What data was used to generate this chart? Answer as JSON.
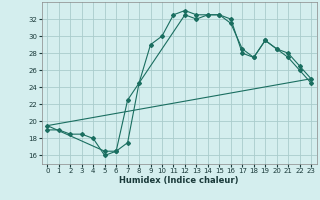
{
  "background_color": "#d4eeee",
  "grid_color": "#aacccc",
  "line_color": "#1a6e60",
  "xlabel": "Humidex (Indice chaleur)",
  "xlim": [
    -0.5,
    23.5
  ],
  "ylim": [
    15,
    34
  ],
  "xticks": [
    0,
    1,
    2,
    3,
    4,
    5,
    6,
    7,
    8,
    9,
    10,
    11,
    12,
    13,
    14,
    15,
    16,
    17,
    18,
    19,
    20,
    21,
    22,
    23
  ],
  "yticks": [
    16,
    18,
    20,
    22,
    24,
    26,
    28,
    30,
    32
  ],
  "line1_x": [
    0,
    1,
    2,
    3,
    4,
    5,
    6,
    7,
    8,
    9,
    10,
    11,
    12,
    13,
    14,
    15,
    16,
    17,
    18,
    19,
    20,
    21,
    22,
    23
  ],
  "line1_y": [
    19.0,
    19.0,
    18.5,
    18.5,
    18.0,
    16.0,
    16.5,
    17.5,
    24.5,
    29.0,
    30.0,
    32.5,
    33.0,
    32.5,
    32.5,
    32.5,
    32.0,
    28.0,
    27.5,
    29.5,
    28.5,
    27.5,
    26.0,
    24.5
  ],
  "line2_x": [
    0,
    5,
    6,
    7,
    12,
    13,
    14,
    15,
    16,
    17,
    18,
    19,
    20,
    21,
    22,
    23
  ],
  "line2_y": [
    19.5,
    16.5,
    16.5,
    22.5,
    32.5,
    32.0,
    32.5,
    32.5,
    31.5,
    28.5,
    27.5,
    29.5,
    28.5,
    28.0,
    26.5,
    25.0
  ],
  "line3_x": [
    0,
    23
  ],
  "line3_y": [
    19.5,
    25.0
  ],
  "xlabel_fontsize": 6.0,
  "tick_fontsize": 5.0
}
